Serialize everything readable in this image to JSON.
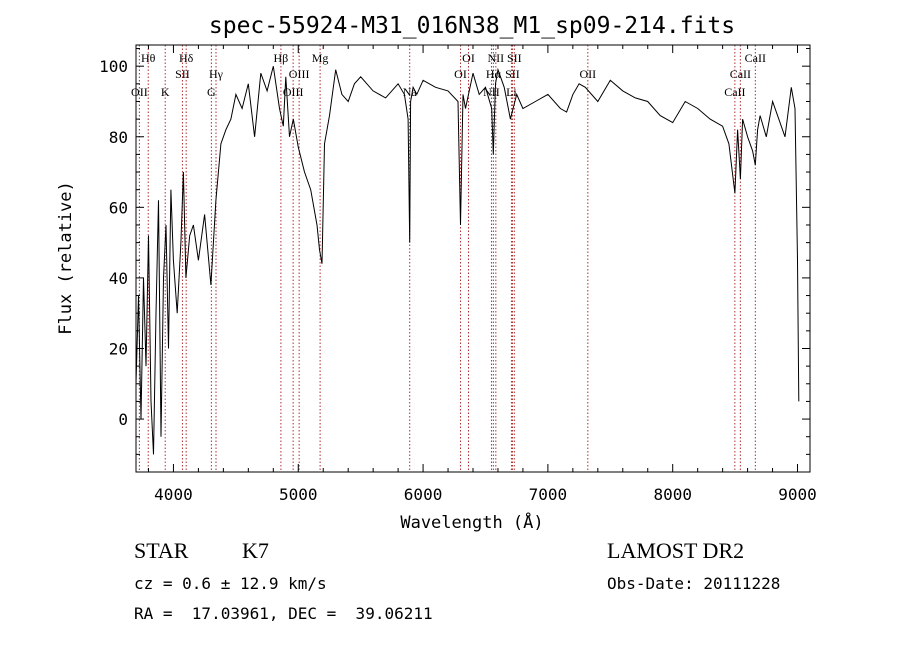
{
  "chart_data": {
    "type": "line",
    "title": "spec-55924-M31_016N38_M1_sp09-214.fits",
    "xlabel": "Wavelength (Å)",
    "ylabel": "Flux (relative)",
    "xlim": [
      3700,
      9100
    ],
    "ylim": [
      -15,
      106
    ],
    "x_ticks": [
      "4000",
      "5000",
      "6000",
      "7000",
      "8000",
      "9000"
    ],
    "y_ticks": [
      "0",
      "20",
      "40",
      "60",
      "80",
      "100"
    ],
    "series": [
      {
        "x": [
          3700,
          3720,
          3740,
          3760,
          3780,
          3800,
          3820,
          3840,
          3860,
          3880,
          3900,
          3920,
          3940,
          3960,
          3980,
          4000,
          4030,
          4060,
          4080,
          4100,
          4130,
          4160,
          4200,
          4250,
          4300,
          4340,
          4380,
          4420,
          4460,
          4500,
          4550,
          4600,
          4650,
          4700,
          4750,
          4800,
          4850,
          4880,
          4900,
          4930,
          4960,
          5000,
          5050,
          5100,
          5150,
          5170,
          5190,
          5210,
          5250,
          5300,
          5350,
          5400,
          5450,
          5500,
          5600,
          5700,
          5800,
          5850,
          5880,
          5893,
          5900,
          5920,
          5950,
          6000,
          6100,
          6200,
          6280,
          6300,
          6320,
          6340,
          6400,
          6450,
          6500,
          6550,
          6563,
          6580,
          6600,
          6650,
          6700,
          6750,
          6800,
          6900,
          7000,
          7100,
          7150,
          7200,
          7250,
          7300,
          7400,
          7500,
          7600,
          7700,
          7800,
          7900,
          8000,
          8100,
          8200,
          8300,
          8400,
          8450,
          8498,
          8520,
          8542,
          8560,
          8600,
          8640,
          8662,
          8680,
          8700,
          8750,
          8800,
          8850,
          8900,
          8950,
          8980,
          9000,
          9010
        ],
        "y": [
          10,
          35,
          0,
          40,
          15,
          52,
          5,
          -10,
          30,
          62,
          -5,
          40,
          55,
          20,
          65,
          45,
          30,
          50,
          70,
          40,
          52,
          55,
          45,
          58,
          38,
          62,
          78,
          82,
          85,
          92,
          88,
          95,
          80,
          98,
          93,
          100,
          88,
          83,
          97,
          80,
          85,
          77,
          70,
          65,
          55,
          48,
          44,
          78,
          86,
          99,
          92,
          90,
          95,
          97,
          93,
          91,
          95,
          92,
          85,
          50,
          90,
          94,
          92,
          96,
          94,
          93,
          90,
          55,
          92,
          88,
          98,
          92,
          94,
          88,
          75,
          95,
          99,
          94,
          85,
          92,
          88,
          90,
          92,
          88,
          87,
          92,
          95,
          94,
          90,
          96,
          93,
          91,
          90,
          86,
          84,
          90,
          88,
          85,
          83,
          78,
          64,
          82,
          68,
          85,
          80,
          76,
          72,
          82,
          86,
          80,
          90,
          85,
          80,
          94,
          88,
          45,
          5
        ]
      }
    ],
    "lines": [
      {
        "name": "Hθ",
        "x": 3798
      },
      {
        "name": "OII",
        "x": 3727
      },
      {
        "name": "K",
        "x": 3934
      },
      {
        "name": "Hδ",
        "x": 4102
      },
      {
        "name": "SII",
        "x": 4072
      },
      {
        "name": "Hγ",
        "x": 4341
      },
      {
        "name": "G",
        "x": 4304
      },
      {
        "name": "Hβ",
        "x": 4861
      },
      {
        "name": "OIII",
        "x": 4959
      },
      {
        "name": "OIII",
        "x": 5007
      },
      {
        "name": "Mg",
        "x": 5175
      },
      {
        "name": "Na",
        "x": 5893
      },
      {
        "name": "OI",
        "x": 6300
      },
      {
        "name": "OI",
        "x": 6364
      },
      {
        "name": "NII",
        "x": 6548
      },
      {
        "name": "Hα",
        "x": 6563
      },
      {
        "name": "NII",
        "x": 6583
      },
      {
        "name": "Li",
        "x": 6708
      },
      {
        "name": "SII",
        "x": 6716
      },
      {
        "name": "SII",
        "x": 6731
      },
      {
        "name": "OII",
        "x": 7320
      },
      {
        "name": "CaII",
        "x": 8498
      },
      {
        "name": "CaII",
        "x": 8542
      },
      {
        "name": "CaII",
        "x": 8662
      }
    ],
    "line_labels": [
      {
        "text": "Hθ",
        "x": 3798,
        "row": 0
      },
      {
        "text": "OII",
        "x": 3727,
        "row": 2
      },
      {
        "text": "K",
        "x": 3934,
        "row": 2
      },
      {
        "text": "Hδ",
        "x": 4102,
        "row": 0
      },
      {
        "text": "SII",
        "x": 4072,
        "row": 1
      },
      {
        "text": "Hγ",
        "x": 4341,
        "row": 1
      },
      {
        "text": "G",
        "x": 4304,
        "row": 2
      },
      {
        "text": "Hβ",
        "x": 4861,
        "row": 0
      },
      {
        "text": "Mg",
        "x": 5175,
        "row": 0
      },
      {
        "text": "OIII",
        "x": 5007,
        "row": 1
      },
      {
        "text": "OIII",
        "x": 4959,
        "row": 2
      },
      {
        "text": "Na",
        "x": 5893,
        "row": 2
      },
      {
        "text": "OI",
        "x": 6364,
        "row": 0
      },
      {
        "text": "OI",
        "x": 6300,
        "row": 1
      },
      {
        "text": "NII",
        "x": 6583,
        "row": 0
      },
      {
        "text": "SII",
        "x": 6731,
        "row": 0
      },
      {
        "text": "Hα",
        "x": 6563,
        "row": 1
      },
      {
        "text": "SII",
        "x": 6716,
        "row": 1
      },
      {
        "text": "NII",
        "x": 6548,
        "row": 2
      },
      {
        "text": "Li",
        "x": 6708,
        "row": 2
      },
      {
        "text": "OII",
        "x": 7320,
        "row": 1
      },
      {
        "text": "CaII",
        "x": 8662,
        "row": 0
      },
      {
        "text": "CaII",
        "x": 8542,
        "row": 1
      },
      {
        "text": "CaII",
        "x": 8498,
        "row": 2
      }
    ]
  },
  "info": {
    "class": "STAR",
    "subclass": "K7",
    "survey": "LAMOST DR2",
    "redshift": "cz = 0.6 ± 12.9 km/s",
    "obs_date": "Obs-Date: 20111228",
    "coords": "RA =  17.03961, DEC =  39.06211"
  }
}
